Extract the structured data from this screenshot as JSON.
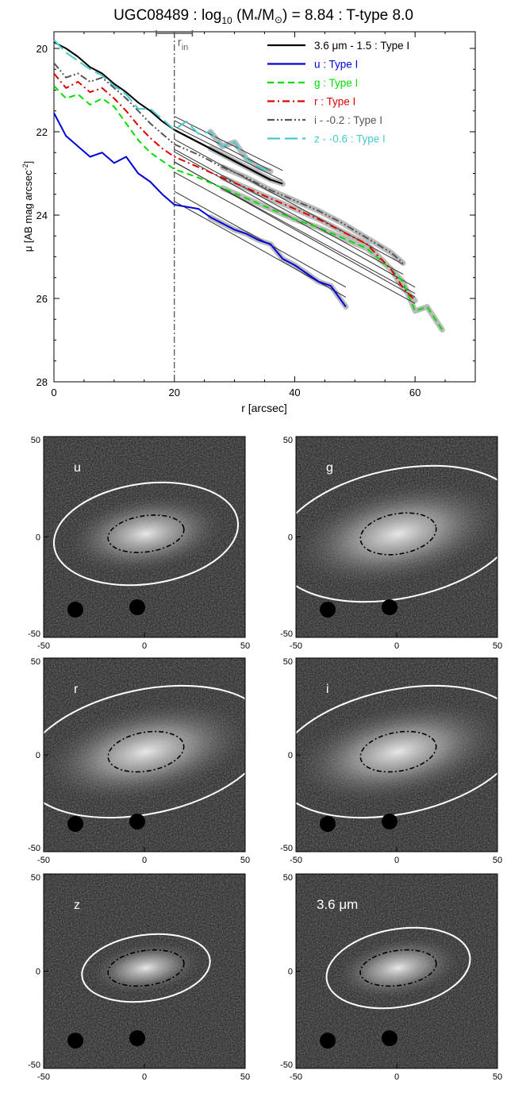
{
  "title": {
    "galaxy": "UGC08489",
    "log_prefix": "log",
    "log_sub": "10",
    "mass_expr": " (M",
    "star": "*",
    "slash_m": "/M",
    "sun": "⊙",
    "rest": ") = 8.84 : T-type 8.0"
  },
  "rin_label": {
    "main": "r",
    "sub": "in"
  },
  "chart_data": {
    "type": "line",
    "xlabel": "r [arcsec]",
    "ylabel": {
      "main": "μ [AB mag arcsec",
      "sup": "-2",
      "end": "]"
    },
    "xlim": [
      0,
      70
    ],
    "ylim": [
      28,
      19.6
    ],
    "inverted_y": true,
    "xticks": [
      0,
      20,
      40,
      60
    ],
    "yticks": [
      20,
      22,
      24,
      26,
      28
    ],
    "r_in": 20,
    "r_in_err": [
      17,
      23
    ],
    "legend_position": "top-right",
    "series": [
      {
        "name": "3.6 μm - 1.5 : Type I",
        "color": "#000000",
        "dash": "solid",
        "label_color": "#000000",
        "x": [
          0,
          2,
          4,
          6,
          8,
          10,
          12,
          14,
          16,
          18,
          20,
          22,
          24,
          26,
          28,
          30,
          32,
          34,
          36,
          38
        ],
        "y": [
          19.85,
          20.0,
          20.2,
          20.45,
          20.6,
          20.85,
          21.05,
          21.3,
          21.5,
          21.75,
          21.95,
          22.1,
          22.25,
          22.4,
          22.55,
          22.7,
          22.85,
          23.0,
          23.15,
          23.25
        ],
        "fit": [
          [
            20,
            21.75
          ],
          [
            38,
            23.05
          ]
        ]
      },
      {
        "name": "u : Type I",
        "color": "#0000dd",
        "dash": "solid",
        "label_color": "#0000dd",
        "x": [
          0,
          2,
          4,
          6,
          8,
          10,
          12,
          14,
          16,
          18,
          20,
          22,
          24,
          26,
          28,
          30,
          32,
          34,
          36,
          38,
          40,
          42,
          44,
          46,
          48.5
        ],
        "y": [
          21.55,
          22.1,
          22.35,
          22.6,
          22.5,
          22.75,
          22.6,
          23.0,
          23.2,
          23.5,
          23.75,
          23.8,
          23.85,
          24.05,
          24.2,
          24.35,
          24.45,
          24.6,
          24.7,
          25.05,
          25.2,
          25.4,
          25.6,
          25.7,
          26.2
        ],
        "fit": [
          [
            20,
            23.55
          ],
          [
            48.5,
            25.85
          ]
        ]
      },
      {
        "name": "g : Type I",
        "color": "#00dd00",
        "dash": "dashed",
        "label_color": "#00dd00",
        "x": [
          0,
          2,
          4,
          6,
          8,
          10,
          12,
          14,
          16,
          18,
          20,
          24,
          28,
          32,
          36,
          40,
          44,
          48,
          52,
          56,
          58,
          60,
          62,
          64.5
        ],
        "y": [
          20.9,
          21.2,
          21.1,
          21.35,
          21.2,
          21.4,
          21.8,
          22.2,
          22.5,
          22.7,
          22.9,
          23.1,
          23.35,
          23.6,
          23.85,
          24.1,
          24.3,
          24.55,
          24.8,
          25.3,
          25.6,
          26.3,
          26.2,
          26.75
        ],
        "fit": [
          [
            20,
            22.85
          ],
          [
            60,
            26.0
          ]
        ]
      },
      {
        "name": "r : Type I",
        "color": "#dd0000",
        "dash": "dashdot",
        "label_color": "#dd0000",
        "x": [
          0,
          2,
          4,
          6,
          8,
          10,
          12,
          14,
          16,
          18,
          20,
          24,
          28,
          32,
          36,
          40,
          44,
          48,
          52,
          56,
          58,
          60
        ],
        "y": [
          20.6,
          20.95,
          20.8,
          21.05,
          20.95,
          21.2,
          21.5,
          21.85,
          22.15,
          22.4,
          22.6,
          22.85,
          23.1,
          23.35,
          23.6,
          23.85,
          24.1,
          24.4,
          24.7,
          25.3,
          25.75,
          26.05
        ],
        "fit": [
          [
            20,
            22.6
          ],
          [
            60,
            25.85
          ]
        ]
      },
      {
        "name": "i - -0.2 : Type I",
        "color": "#555555",
        "dash": "dashdotdot",
        "label_color": "#555555",
        "x": [
          0,
          2,
          4,
          6,
          8,
          10,
          12,
          14,
          16,
          18,
          20,
          24,
          28,
          32,
          36,
          40,
          44,
          48,
          52,
          56,
          58
        ],
        "y": [
          20.35,
          20.7,
          20.6,
          20.8,
          20.7,
          20.95,
          21.2,
          21.5,
          21.8,
          22.05,
          22.3,
          22.55,
          22.85,
          23.1,
          23.4,
          23.65,
          23.9,
          24.2,
          24.55,
          24.9,
          25.15
        ],
        "fit": [
          [
            20,
            22.3
          ],
          [
            58,
            25.3
          ]
        ]
      },
      {
        "name": "z - -0.6 : Type I",
        "color": "#44cccc",
        "dash": "longdash",
        "label_color": "#44cccc",
        "x": [
          0,
          2,
          4,
          6,
          8,
          10,
          12,
          14,
          16,
          18,
          20,
          22,
          24,
          26,
          28,
          30,
          32,
          34,
          36
        ],
        "y": [
          19.8,
          20.1,
          20.3,
          20.5,
          20.65,
          20.9,
          21.1,
          21.45,
          21.45,
          21.7,
          21.95,
          21.75,
          22.05,
          22.0,
          22.35,
          22.25,
          22.65,
          22.85,
          22.95
        ],
        "fit": [
          [
            20,
            21.85
          ],
          [
            36,
            23.05
          ]
        ]
      }
    ]
  },
  "image_panels": [
    {
      "label": "u",
      "outer": {
        "rx": 0.46,
        "ry": 0.25,
        "rot": -8
      },
      "inner": {
        "rx": 0.19,
        "ry": 0.09,
        "rot": -8
      }
    },
    {
      "label": "g",
      "outer": {
        "rx": 0.62,
        "ry": 0.32,
        "rot": -12
      },
      "inner": {
        "rx": 0.19,
        "ry": 0.1,
        "rot": -10
      }
    },
    {
      "label": "r",
      "outer": {
        "rx": 0.62,
        "ry": 0.32,
        "rot": -12
      },
      "inner": {
        "rx": 0.19,
        "ry": 0.1,
        "rot": -10
      }
    },
    {
      "label": "i",
      "outer": {
        "rx": 0.62,
        "ry": 0.32,
        "rot": -12
      },
      "inner": {
        "rx": 0.19,
        "ry": 0.1,
        "rot": -10
      }
    },
    {
      "label": "z",
      "outer": {
        "rx": 0.32,
        "ry": 0.17,
        "rot": -8
      },
      "inner": {
        "rx": 0.19,
        "ry": 0.09,
        "rot": -8
      }
    },
    {
      "label": "3.6 μm",
      "outer": {
        "rx": 0.36,
        "ry": 0.2,
        "rot": -10
      },
      "inner": {
        "rx": 0.19,
        "ry": 0.09,
        "rot": -8
      }
    }
  ],
  "image_axes": {
    "ticks": [
      -50,
      0,
      50
    ],
    "xlabels": [
      "-50",
      "0",
      "50"
    ],
    "ylabels": [
      "50",
      "0",
      "-50"
    ]
  },
  "colors": {
    "panel_bg": "#1a1a1a",
    "ellipse_outer": "#ffffff",
    "ellipse_inner": "#000000",
    "fit_line": "#333333",
    "error_band": "#bbbbbb"
  }
}
